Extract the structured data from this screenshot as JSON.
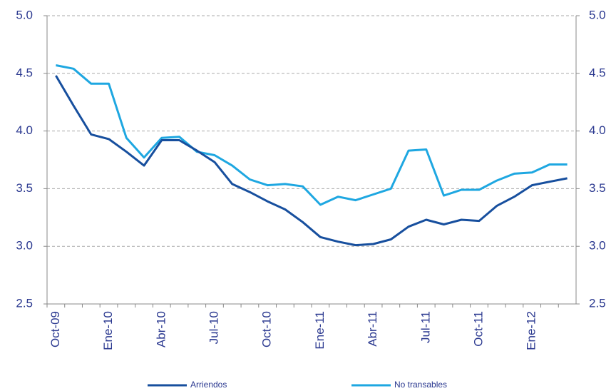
{
  "chart_data": {
    "type": "line",
    "categories": [
      "Oct-09",
      null,
      null,
      "Ene-10",
      null,
      null,
      "Abr-10",
      null,
      null,
      "Jul-10",
      null,
      null,
      "Oct-10",
      null,
      null,
      "Ene-11",
      null,
      null,
      "Abr-11",
      null,
      null,
      "Jul-11",
      null,
      null,
      "Oct-11",
      null,
      null,
      "Ene-12",
      null,
      null
    ],
    "series": [
      {
        "name": "Arriendos",
        "color": "#174f9e",
        "values": [
          4.48,
          4.22,
          3.97,
          3.93,
          3.82,
          3.7,
          3.92,
          3.92,
          3.83,
          3.73,
          3.54,
          3.47,
          3.39,
          3.32,
          3.21,
          3.08,
          3.04,
          3.01,
          3.02,
          3.06,
          3.17,
          3.23,
          3.19,
          3.23,
          3.22,
          3.35,
          3.43,
          3.53,
          3.56,
          3.59
        ]
      },
      {
        "name": "No transables",
        "color": "#1ea7e1",
        "values": [
          4.57,
          4.54,
          4.41,
          4.41,
          3.94,
          3.77,
          3.94,
          3.95,
          3.82,
          3.79,
          3.7,
          3.58,
          3.53,
          3.54,
          3.52,
          3.36,
          3.43,
          3.4,
          3.45,
          3.5,
          3.83,
          3.84,
          3.44,
          3.49,
          3.49,
          3.57,
          3.63,
          3.64,
          3.71,
          3.71
        ]
      }
    ],
    "ylim": [
      2.5,
      5.0
    ],
    "yticks": [
      {
        "value": 2.5,
        "label": "2.5"
      },
      {
        "value": 3.0,
        "label": "3.0"
      },
      {
        "value": 3.5,
        "label": "3.5"
      },
      {
        "value": 4.0,
        "label": "4.0"
      },
      {
        "value": 4.5,
        "label": "4.5"
      },
      {
        "value": 5.0,
        "label": "5.0"
      }
    ],
    "y2lim": [
      2.5,
      5.0
    ],
    "y2ticks": [
      {
        "value": 2.5,
        "label": "2.5"
      },
      {
        "value": 3.0,
        "label": "3.0"
      },
      {
        "value": 3.5,
        "label": "3.5"
      },
      {
        "value": 4.0,
        "label": "4.0"
      },
      {
        "value": 4.5,
        "label": "4.5"
      },
      {
        "value": 5.0,
        "label": "5.0"
      }
    ],
    "grid": true,
    "legend": "bottom"
  }
}
